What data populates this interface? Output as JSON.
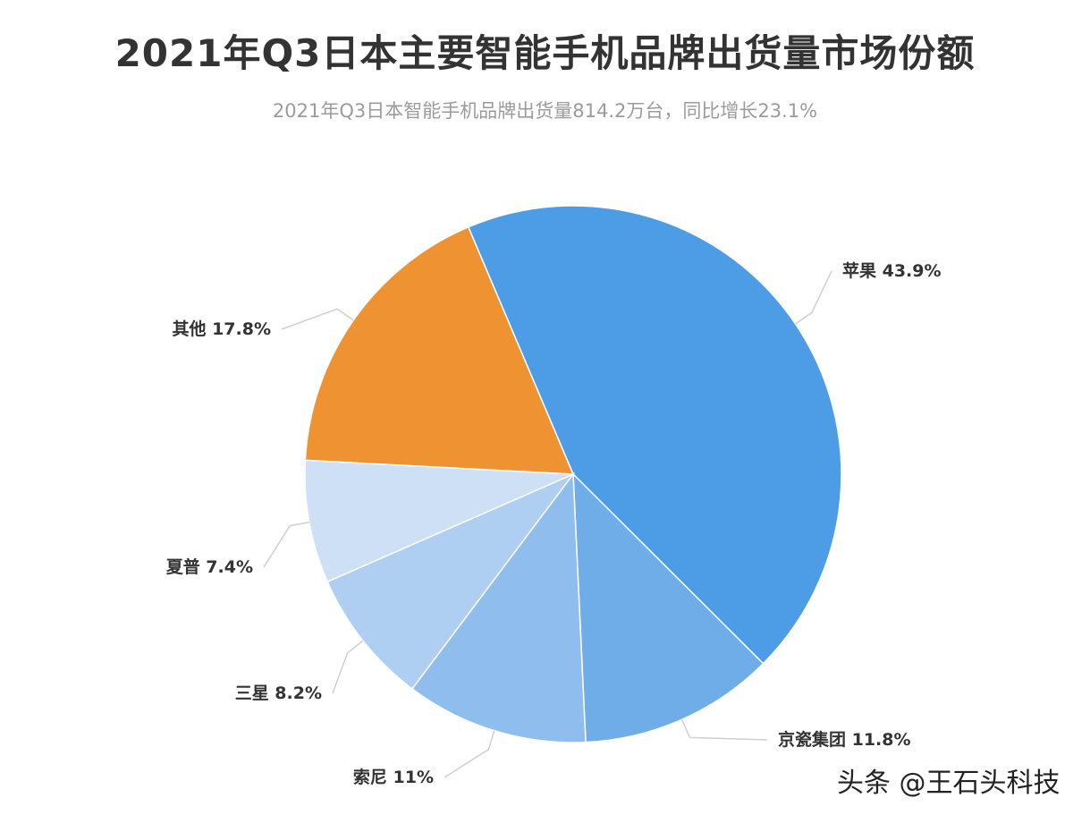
{
  "chart_data": {
    "type": "pie",
    "title": "2021年Q3日本主要智能手机品牌出货量市场份额",
    "subtitle": "2021年Q3日本智能手机品牌出货量814.2万台，同比增长23.1%",
    "slices": [
      {
        "label": "苹果",
        "value": 43.9,
        "value_text": "43.9%",
        "color": "#4d9de6"
      },
      {
        "label": "京瓷集团",
        "value": 11.8,
        "value_text": "11.8%",
        "color": "#6fade9"
      },
      {
        "label": "索尼",
        "value": 11,
        "value_text": "11%",
        "color": "#8fbdee"
      },
      {
        "label": "三星",
        "value": 8.2,
        "value_text": "8.2%",
        "color": "#afcff2"
      },
      {
        "label": "夏普",
        "value": 7.4,
        "value_text": "7.4%",
        "color": "#cde0f6"
      },
      {
        "label": "其他",
        "value": 17.8,
        "value_text": "17.8%",
        "color": "#ee9232"
      }
    ],
    "start_angle_deg": -23,
    "direction": "clockwise",
    "leader_line_color": "#cfcfcf"
  },
  "watermark": "头条 @王石头科技"
}
